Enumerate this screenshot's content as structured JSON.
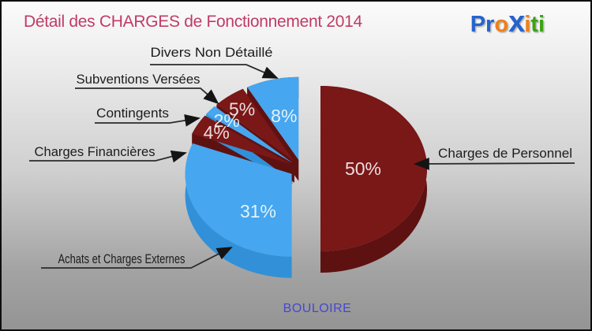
{
  "header": {
    "title": "Détail des CHARGES de Fonctionnement 2014",
    "title_color": "#c13b66",
    "logo": {
      "name": "Proxiti",
      "parts": [
        {
          "text": "Pr",
          "color": "#2563cd",
          "big": false
        },
        {
          "text": "o",
          "color": "#ef8018",
          "big": false
        },
        {
          "text": "x",
          "color": "#2563cd",
          "big": true
        },
        {
          "text": "i",
          "color": "#ef8018",
          "big": false
        },
        {
          "text": "ti",
          "color": "#3da214",
          "big": false
        }
      ]
    }
  },
  "footer": {
    "municipality": "BOULOIRE",
    "color": "#4747cf"
  },
  "chart_data": {
    "type": "pie",
    "style": "3d-exploded",
    "title": "Détail des CHARGES de Fonctionnement 2014",
    "unit": "%",
    "direction": "clockwise",
    "start_angle_deg": 0,
    "legend_position": "callouts",
    "palette": {
      "dark_red_top": "#7a1717",
      "dark_red_side": "#5e1111",
      "blue_top": "#46a6ef",
      "blue_side": "#3190d8"
    },
    "slices": [
      {
        "label": "Charges de Personnel",
        "value": 50,
        "color": "#7a1717",
        "side_color": "#5e1111"
      },
      {
        "label": "Achats et Charges Externes",
        "value": 31,
        "color": "#46a6ef",
        "side_color": "#3190d8"
      },
      {
        "label": "Charges Financières",
        "value": 4,
        "color": "#7a1717",
        "side_color": "#5e1111"
      },
      {
        "label": "Contingents",
        "value": 2,
        "color": "#46a6ef",
        "side_color": "#3190d8"
      },
      {
        "label": "Subventions Versées",
        "value": 5,
        "color": "#7a1717",
        "side_color": "#5e1111"
      },
      {
        "label": "Divers Non Détaillé",
        "value": 8,
        "color": "#46a6ef",
        "side_color": "#5e1111"
      }
    ]
  }
}
